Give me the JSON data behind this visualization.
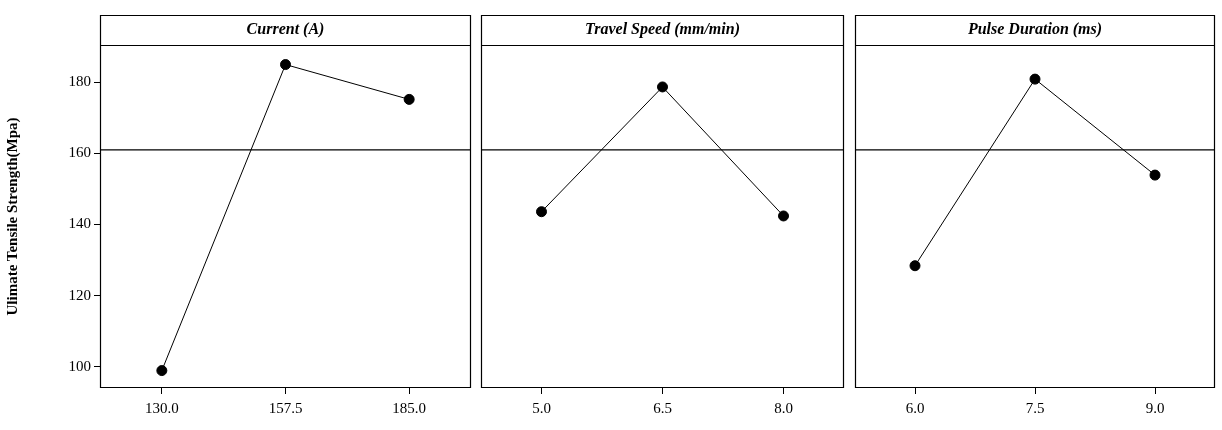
{
  "chart_data": [
    {
      "type": "line",
      "title": "Current (A)",
      "ylabel": "Ulimate Tensile Strength(Mpa)",
      "categories": [
        "130.0",
        "157.5",
        "185.0"
      ],
      "series": [
        {
          "color": "#000000",
          "values": [
            98.9,
            185.0,
            175.2
          ]
        }
      ],
      "ylim": [
        94,
        190.5
      ],
      "yticks": [
        100,
        120,
        140,
        160,
        180
      ],
      "ref_lines": [
        {
          "axis": "y",
          "value": 161.0,
          "color": "#000000"
        }
      ],
      "marker": "circle",
      "legend": false,
      "grid": false
    },
    {
      "type": "line",
      "title": "Travel Speed (mm/min)",
      "categories": [
        "5.0",
        "6.5",
        "8.0"
      ],
      "series": [
        {
          "color": "#000000",
          "values": [
            143.6,
            178.7,
            142.4
          ]
        }
      ],
      "ylim": [
        94,
        190.5
      ],
      "tick_labels": "x",
      "ref_lines": [
        {
          "axis": "y",
          "value": 161.0,
          "color": "#000000"
        }
      ],
      "marker": "circle",
      "legend": false,
      "grid": false
    },
    {
      "type": "line",
      "title": "Pulse Duration (ms)",
      "categories": [
        "6.0",
        "7.5",
        "9.0"
      ],
      "series": [
        {
          "color": "#000000",
          "values": [
            128.4,
            180.9,
            153.9
          ]
        }
      ],
      "ylim": [
        94,
        190.5
      ],
      "tick_labels": "x",
      "ref_lines": [
        {
          "axis": "y",
          "value": 161.0,
          "color": "#000000"
        }
      ],
      "marker": "circle",
      "legend": false,
      "grid": false
    }
  ]
}
